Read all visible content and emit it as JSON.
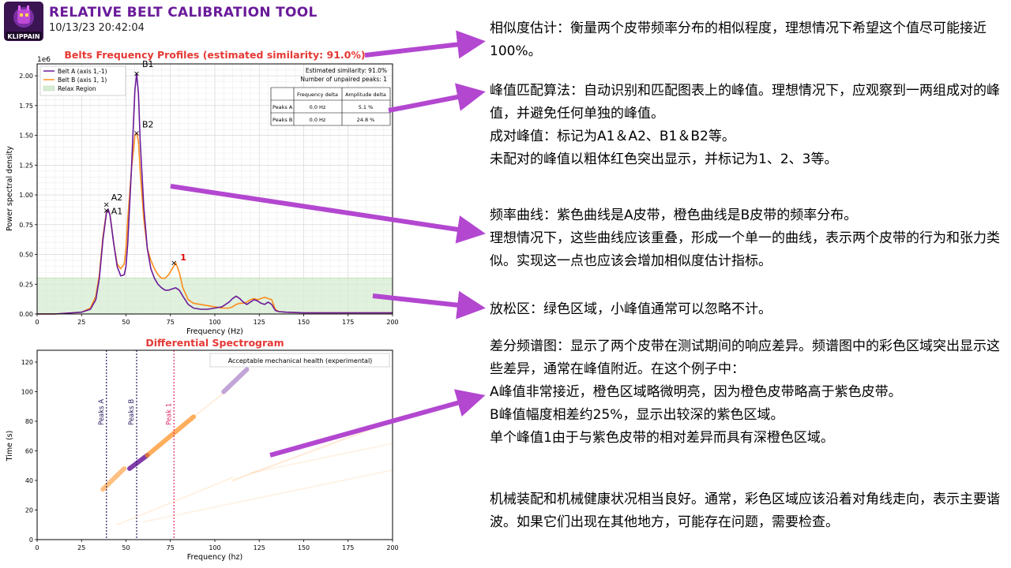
{
  "header": {
    "title": "RELATIVE BELT CALIBRATION TOOL",
    "date": "10/13/23 20:42:04",
    "logo_text": "KLIPPAIN"
  },
  "colors": {
    "belt_a": "#6a1b9a",
    "belt_b": "#ff8c1a",
    "relax": "#d6ecd2",
    "title_red": "#e53935",
    "arrow": "#b347d0",
    "peak_unpaired": "#e00000"
  },
  "chart_data": [
    {
      "type": "line",
      "title": "Belts Frequency Profiles (estimated similarity: 91.0%)",
      "xlabel": "Frequency (Hz)",
      "ylabel": "Power spectral density",
      "y_scale_label": "1e6",
      "xlim": [
        0,
        200
      ],
      "ylim": [
        0,
        2.1
      ],
      "xticks": [
        "0",
        "25",
        "50",
        "75",
        "100",
        "125",
        "150",
        "175",
        "200"
      ],
      "yticks": [
        "0.00",
        "0.25",
        "0.50",
        "0.75",
        "1.00",
        "1.25",
        "1.50",
        "1.75",
        "2.00"
      ],
      "grid": true,
      "relax_region_max": 0.3,
      "legend": [
        "Belt A (axis 1,-1)",
        "Belt B (axis 1, 1)",
        "Relax Region"
      ],
      "info_text": [
        "Estimated similarity: 91.0%",
        "Number of unpaired peaks: 1"
      ],
      "table": {
        "headers": [
          "",
          "Frequency delta",
          "Amplitude delta"
        ],
        "rows": [
          [
            "Peaks A",
            "0.0 Hz",
            "5.1 %"
          ],
          [
            "Peaks B",
            "0.0 Hz",
            "24.8 %"
          ]
        ]
      },
      "series": [
        {
          "name": "Belt A (axis 1,-1)",
          "x": [
            0,
            10,
            20,
            25,
            30,
            33,
            35,
            37,
            39,
            40,
            41,
            43,
            45,
            47,
            49,
            50,
            51,
            53,
            55,
            56,
            57,
            58,
            60,
            62,
            64,
            66,
            68,
            70,
            72,
            74,
            76,
            78,
            80,
            82,
            85,
            88,
            92,
            96,
            100,
            104,
            108,
            110,
            112,
            114,
            116,
            118,
            120,
            122,
            124,
            126,
            128,
            130,
            132,
            134,
            136,
            140,
            150,
            160,
            170,
            180,
            190,
            200
          ],
          "y": [
            0,
            0,
            0.01,
            0.015,
            0.04,
            0.12,
            0.3,
            0.62,
            0.85,
            0.88,
            0.83,
            0.6,
            0.4,
            0.32,
            0.33,
            0.4,
            0.6,
            1.2,
            1.88,
            2.02,
            1.85,
            1.45,
            0.9,
            0.55,
            0.38,
            0.3,
            0.25,
            0.22,
            0.2,
            0.2,
            0.21,
            0.22,
            0.2,
            0.15,
            0.08,
            0.05,
            0.04,
            0.04,
            0.05,
            0.06,
            0.1,
            0.13,
            0.15,
            0.13,
            0.1,
            0.08,
            0.1,
            0.12,
            0.11,
            0.09,
            0.08,
            0.1,
            0.08,
            0.03,
            0.02,
            0.015,
            0.01,
            0.01,
            0.01,
            0.01,
            0.01,
            0.01
          ]
        },
        {
          "name": "Belt B (axis 1, 1)",
          "x": [
            0,
            10,
            20,
            25,
            30,
            33,
            35,
            37,
            39,
            40,
            41,
            43,
            45,
            47,
            49,
            50,
            51,
            53,
            55,
            56,
            57,
            58,
            60,
            62,
            64,
            66,
            68,
            70,
            72,
            74,
            76,
            78,
            80,
            82,
            85,
            88,
            92,
            96,
            100,
            104,
            108,
            110,
            112,
            114,
            116,
            118,
            120,
            122,
            124,
            126,
            128,
            130,
            132,
            134,
            136,
            140,
            150,
            160,
            170,
            180,
            190,
            200
          ],
          "y": [
            0,
            0,
            0.01,
            0.015,
            0.05,
            0.15,
            0.33,
            0.65,
            0.86,
            0.87,
            0.83,
            0.6,
            0.42,
            0.38,
            0.42,
            0.55,
            0.8,
            1.2,
            1.5,
            1.52,
            1.45,
            1.2,
            0.8,
            0.55,
            0.45,
            0.38,
            0.33,
            0.3,
            0.3,
            0.33,
            0.38,
            0.43,
            0.35,
            0.22,
            0.12,
            0.09,
            0.08,
            0.07,
            0.06,
            0.05,
            0.05,
            0.06,
            0.08,
            0.09,
            0.09,
            0.1,
            0.12,
            0.13,
            0.12,
            0.13,
            0.14,
            0.13,
            0.12,
            0.04,
            0.02,
            0.015,
            0.01,
            0.01,
            0.01,
            0.01,
            0.01,
            0.01
          ]
        }
      ],
      "peaks": [
        {
          "label": "A2",
          "x": 39,
          "y": 0.92
        },
        {
          "label": "A1",
          "x": 39,
          "y": 0.87
        },
        {
          "label": "B1",
          "x": 56,
          "y": 2.02
        },
        {
          "label": "B2",
          "x": 56,
          "y": 1.52
        },
        {
          "label": "1",
          "x": 77,
          "y": 0.43,
          "unpaired": true
        }
      ]
    },
    {
      "type": "heatmap",
      "title": "Differential Spectrogram",
      "xlabel": "Frequency (hz)",
      "ylabel": "Time (s)",
      "xlim": [
        0,
        200
      ],
      "ylim": [
        0,
        128
      ],
      "xticks": [
        "0",
        "25",
        "50",
        "75",
        "100",
        "125",
        "150",
        "175",
        "200"
      ],
      "yticks": [
        "0",
        "20",
        "40",
        "60",
        "80",
        "100",
        "120"
      ],
      "legend": [
        "Acceptable mechanical health (experimental)"
      ],
      "vlines": [
        {
          "label": "Peaks A",
          "x": 39
        },
        {
          "label": "Peaks B",
          "x": 56
        },
        {
          "label": "Peak 1",
          "x": 77
        }
      ],
      "bands": [
        {
          "x0": 37,
          "y0": 34,
          "x1": 49,
          "y1": 48,
          "color": "orange",
          "alpha": 0.55
        },
        {
          "x0": 52,
          "y0": 48,
          "x1": 62,
          "y1": 57,
          "color": "purple",
          "alpha": 0.85
        },
        {
          "x0": 62,
          "y0": 57,
          "x1": 88,
          "y1": 83,
          "color": "orange",
          "alpha": 0.7
        },
        {
          "x0": 88,
          "y0": 83,
          "x1": 105,
          "y1": 99,
          "color": "orange",
          "alpha": 0.15
        },
        {
          "x0": 105,
          "y0": 100,
          "x1": 118,
          "y1": 115,
          "color": "purple",
          "alpha": 0.4
        },
        {
          "x0": 45,
          "y0": 10,
          "x1": 110,
          "y1": 42,
          "color": "orange",
          "alpha": 0.12
        },
        {
          "x0": 110,
          "y0": 40,
          "x1": 200,
          "y1": 80,
          "color": "orange",
          "alpha": 0.18
        },
        {
          "x0": 120,
          "y0": 45,
          "x1": 200,
          "y1": 65,
          "color": "orange",
          "alpha": 0.1
        },
        {
          "x0": 60,
          "y0": 12,
          "x1": 200,
          "y1": 47,
          "color": "orange",
          "alpha": 0.1
        }
      ]
    }
  ],
  "annotations": {
    "similarity": "相似度估计：衡量两个皮带频率分布的相似程度，理想情况下希望这个值尽可能接近100%。",
    "peaks": "峰值匹配算法：自动识别和匹配图表上的峰值。理想情况下，应观察到一两组成对的峰值，并避免任何单独的峰值。\n成对峰值：标记为A1＆A2、B1＆B2等。\n未配对的峰值以粗体红色突出显示，并标记为1、2、3等。",
    "curves": "频率曲线：紫色曲线是A皮带，橙色曲线是B皮带的频率分布。\n理想情况下，这些曲线应该重叠，形成一个单一的曲线，表示两个皮带的行为和张力类似。实现这一点也应该会增加相似度估计指标。",
    "relax": "放松区：绿色区域，小峰值通常可以忽略不计。",
    "spectrogram": "差分频谱图：显示了两个皮带在测试期间的响应差异。频谱图中的彩色区域突出显示这些差异，通常在峰值附近。在这个例子中：\nA峰值非常接近，橙色区域略微明亮，因为橙色皮带略高于紫色皮带。\nB峰值幅度相差约25%，显示出较深的紫色区域。\n单个峰值1由于与紫色皮带的相对差异而具有深橙色区域。",
    "health": "机械装配和机械健康状况相当良好。通常，彩色区域应该沿着对角线走向，表示主要谐波。如果它们出现在其他地方，可能存在问题，需要检查。"
  }
}
